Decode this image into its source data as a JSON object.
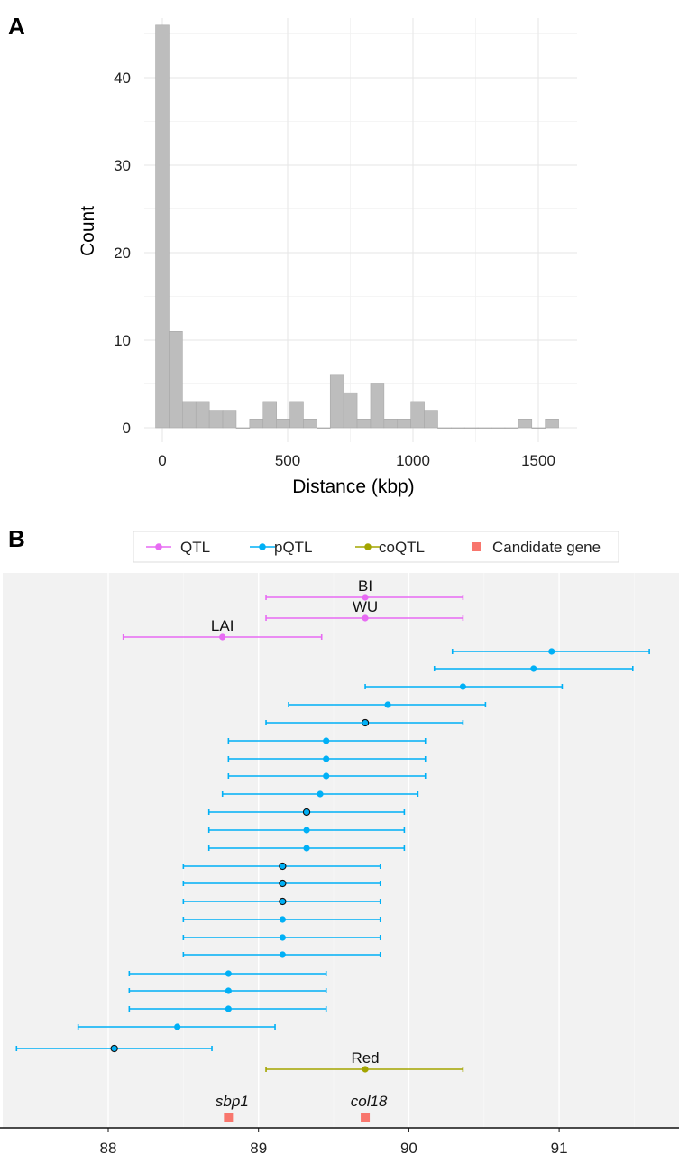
{
  "chart_data": [
    {
      "panel_label": "A",
      "type": "bar",
      "xlabel": "Distance (kbp)",
      "ylabel": "Count",
      "bin_width": 53.6,
      "bin_centers_start": 0,
      "values": [
        46,
        11,
        3,
        3,
        2,
        2,
        0,
        1,
        3,
        1,
        3,
        1,
        0,
        6,
        4,
        1,
        5,
        1,
        1,
        3,
        2,
        0,
        0,
        0,
        0,
        0,
        0,
        1,
        0,
        1
      ],
      "xticks": [
        0,
        500,
        1000,
        1500
      ],
      "yticks": [
        0,
        10,
        20,
        30,
        40
      ],
      "xlim": [
        -75,
        1650
      ],
      "ylim": [
        0,
        47.6
      ],
      "grid": true,
      "bar_color": "#bdbdbd"
    },
    {
      "panel_label": "B",
      "type": "scatter",
      "xticks": [
        88,
        89,
        90,
        91
      ],
      "xlim": [
        87.28,
        91.8
      ],
      "grid": true,
      "legend": {
        "placement": "top",
        "entries": [
          {
            "label": "QTL",
            "color": "#E76BF3",
            "shape": "point-range"
          },
          {
            "label": "pQTL",
            "color": "#00B0F6",
            "shape": "point-range"
          },
          {
            "label": "coQTL",
            "color": "#A3A500",
            "shape": "point-range"
          },
          {
            "label": "Candidate gene",
            "color": "#F8766D",
            "shape": "square"
          }
        ]
      },
      "intervals": [
        {
          "type": "QTL",
          "label": "BI",
          "x": 89.71,
          "low": 89.05,
          "high": 90.36
        },
        {
          "type": "QTL",
          "label": "WU",
          "x": 89.71,
          "low": 89.05,
          "high": 90.36
        },
        {
          "type": "QTL",
          "label": "LAI",
          "x": 88.76,
          "low": 88.1,
          "high": 89.42
        },
        {
          "type": "pQTL",
          "x": 90.95,
          "low": 90.29,
          "high": 91.6,
          "outlined": false
        },
        {
          "type": "pQTL",
          "x": 90.83,
          "low": 90.17,
          "high": 91.49,
          "outlined": false
        },
        {
          "type": "pQTL",
          "x": 90.36,
          "low": 89.71,
          "high": 91.02,
          "outlined": false
        },
        {
          "type": "pQTL",
          "x": 89.86,
          "low": 89.2,
          "high": 90.51,
          "outlined": false
        },
        {
          "type": "pQTL",
          "x": 89.71,
          "low": 89.05,
          "high": 90.36,
          "outlined": true
        },
        {
          "type": "pQTL",
          "x": 89.45,
          "low": 88.8,
          "high": 90.11,
          "outlined": false
        },
        {
          "type": "pQTL",
          "x": 89.45,
          "low": 88.8,
          "high": 90.11,
          "outlined": false
        },
        {
          "type": "pQTL",
          "x": 89.45,
          "low": 88.8,
          "high": 90.11,
          "outlined": false
        },
        {
          "type": "pQTL",
          "x": 89.41,
          "low": 88.76,
          "high": 90.06,
          "outlined": false
        },
        {
          "type": "pQTL",
          "x": 89.32,
          "low": 88.67,
          "high": 89.97,
          "outlined": true
        },
        {
          "type": "pQTL",
          "x": 89.32,
          "low": 88.67,
          "high": 89.97,
          "outlined": false
        },
        {
          "type": "pQTL",
          "x": 89.32,
          "low": 88.67,
          "high": 89.97,
          "outlined": false
        },
        {
          "type": "pQTL",
          "x": 89.16,
          "low": 88.5,
          "high": 89.81,
          "outlined": true
        },
        {
          "type": "pQTL",
          "x": 89.16,
          "low": 88.5,
          "high": 89.81,
          "outlined": true
        },
        {
          "type": "pQTL",
          "x": 89.16,
          "low": 88.5,
          "high": 89.81,
          "outlined": true
        },
        {
          "type": "pQTL",
          "x": 89.16,
          "low": 88.5,
          "high": 89.81,
          "outlined": false
        },
        {
          "type": "pQTL",
          "x": 89.16,
          "low": 88.5,
          "high": 89.81,
          "outlined": false
        },
        {
          "type": "pQTL",
          "x": 89.16,
          "low": 88.5,
          "high": 89.81,
          "outlined": false
        },
        {
          "type": "pQTL",
          "x": 88.8,
          "low": 88.14,
          "high": 89.45,
          "outlined": false
        },
        {
          "type": "pQTL",
          "x": 88.8,
          "low": 88.14,
          "high": 89.45,
          "outlined": false
        },
        {
          "type": "pQTL",
          "x": 88.8,
          "low": 88.14,
          "high": 89.45,
          "outlined": false
        },
        {
          "type": "pQTL",
          "x": 88.46,
          "low": 87.8,
          "high": 89.11,
          "outlined": false
        },
        {
          "type": "pQTL",
          "x": 88.04,
          "low": 87.39,
          "high": 88.69,
          "outlined": true
        },
        {
          "type": "coQTL",
          "label": "Red",
          "x": 89.71,
          "low": 89.05,
          "high": 90.36
        }
      ],
      "genes": [
        {
          "label": "sbp1",
          "x": 88.8
        },
        {
          "label": "col18",
          "x": 89.71
        }
      ]
    }
  ]
}
